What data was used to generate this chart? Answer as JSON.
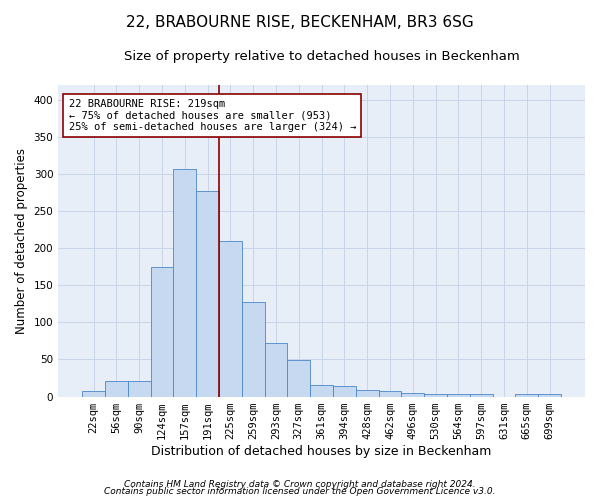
{
  "title_line1": "22, BRABOURNE RISE, BECKENHAM, BR3 6SG",
  "title_line2": "Size of property relative to detached houses in Beckenham",
  "xlabel": "Distribution of detached houses by size in Beckenham",
  "ylabel": "Number of detached properties",
  "bar_labels": [
    "22sqm",
    "56sqm",
    "90sqm",
    "124sqm",
    "157sqm",
    "191sqm",
    "225sqm",
    "259sqm",
    "293sqm",
    "327sqm",
    "361sqm",
    "394sqm",
    "428sqm",
    "462sqm",
    "496sqm",
    "530sqm",
    "564sqm",
    "597sqm",
    "631sqm",
    "665sqm",
    "699sqm"
  ],
  "bar_values": [
    7,
    21,
    21,
    174,
    307,
    277,
    210,
    127,
    72,
    49,
    15,
    14,
    9,
    8,
    5,
    3,
    3,
    4,
    0,
    4,
    4
  ],
  "bar_color": "#c6d9f0",
  "bar_edgecolor": "#4a86c8",
  "bar_width": 1.0,
  "vline_x": 5.5,
  "vline_color": "#8b0000",
  "ylim": [
    0,
    420
  ],
  "yticks": [
    0,
    50,
    100,
    150,
    200,
    250,
    300,
    350,
    400
  ],
  "grid_color": "#c8d4e8",
  "background_color": "#e8eef8",
  "annotation_text": "22 BRABOURNE RISE: 219sqm\n← 75% of detached houses are smaller (953)\n25% of semi-detached houses are larger (324) →",
  "annotation_box_facecolor": "#ffffff",
  "annotation_box_edgecolor": "#8b0000",
  "footnote1": "Contains HM Land Registry data © Crown copyright and database right 2024.",
  "footnote2": "Contains public sector information licensed under the Open Government Licence v3.0.",
  "title_fontsize": 11,
  "subtitle_fontsize": 9.5,
  "xlabel_fontsize": 9,
  "ylabel_fontsize": 8.5,
  "tick_fontsize": 7.5,
  "annotation_fontsize": 7.5,
  "footnote_fontsize": 6.5
}
